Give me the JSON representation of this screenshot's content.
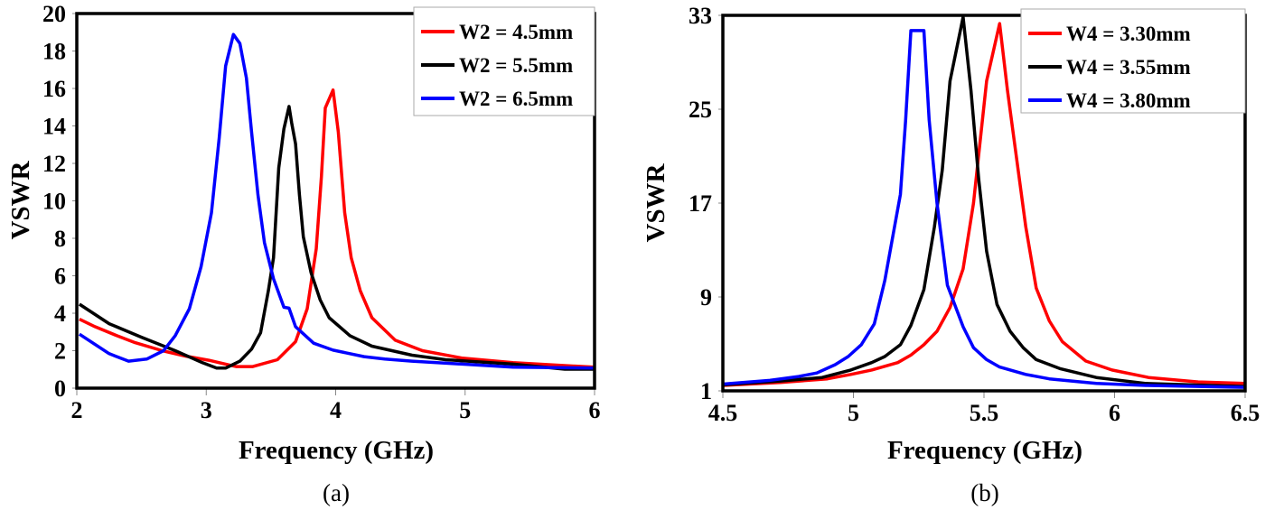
{
  "chart_data": [
    {
      "type": "line",
      "caption": "(a)",
      "xlabel": "Frequency (GHz)",
      "ylabel": "VSWR",
      "xlim": [
        2,
        6
      ],
      "ylim": [
        0,
        20
      ],
      "xticks": [
        "2",
        "3",
        "4",
        "5",
        "6"
      ],
      "yticks": [
        "0",
        "2",
        "4",
        "6",
        "8",
        "10",
        "12",
        "14",
        "16",
        "18",
        "20"
      ],
      "grid": false,
      "legend_position": "top-right",
      "series": [
        {
          "name": "W2 = 4.5mm",
          "color": "#ff0000",
          "x": [
            2.02,
            2.14,
            2.31,
            2.45,
            2.66,
            2.84,
            3.02,
            3.23,
            3.36,
            3.55,
            3.69,
            3.78,
            3.85,
            3.89,
            3.92,
            3.98,
            4.02,
            4.07,
            4.12,
            4.19,
            4.28,
            4.46,
            4.67,
            4.98,
            5.37,
            6.0
          ],
          "y": [
            3.68,
            3.28,
            2.8,
            2.43,
            2.0,
            1.71,
            1.49,
            1.15,
            1.15,
            1.52,
            2.48,
            4.24,
            7.44,
            11.28,
            14.96,
            15.92,
            13.68,
            9.36,
            6.96,
            5.2,
            3.76,
            2.56,
            2.0,
            1.6,
            1.36,
            1.12
          ]
        },
        {
          "name": "W2 = 5.5mm",
          "color": "#000000",
          "x": [
            2.02,
            2.25,
            2.5,
            2.76,
            2.97,
            3.08,
            3.15,
            3.26,
            3.35,
            3.42,
            3.48,
            3.52,
            3.56,
            3.6,
            3.64,
            3.66,
            3.69,
            3.72,
            3.75,
            3.81,
            3.88,
            3.95,
            4.11,
            4.28,
            4.59,
            4.85,
            5.37,
            5.77,
            6.0
          ],
          "y": [
            4.48,
            3.44,
            2.72,
            2.0,
            1.36,
            1.07,
            1.07,
            1.44,
            2.08,
            2.96,
            5.2,
            6.96,
            11.76,
            13.84,
            15.04,
            14.16,
            13.04,
            10.32,
            8.08,
            6.16,
            4.72,
            3.76,
            2.8,
            2.24,
            1.76,
            1.52,
            1.28,
            1.01,
            1.01
          ]
        },
        {
          "name": "W2 = 6.5mm",
          "color": "#0000ff",
          "x": [
            2.02,
            2.25,
            2.4,
            2.54,
            2.67,
            2.76,
            2.87,
            2.96,
            3.04,
            3.1,
            3.15,
            3.21,
            3.26,
            3.31,
            3.35,
            3.4,
            3.45,
            3.52,
            3.6,
            3.64,
            3.69,
            3.83,
            3.98,
            4.22,
            4.38,
            4.59,
            4.98,
            5.37,
            6.0
          ],
          "y": [
            2.88,
            1.84,
            1.44,
            1.55,
            2.0,
            2.8,
            4.24,
            6.48,
            9.36,
            13.36,
            17.2,
            18.88,
            18.4,
            16.56,
            13.68,
            10.32,
            7.76,
            5.84,
            4.32,
            4.27,
            3.28,
            2.4,
            2.03,
            1.68,
            1.55,
            1.44,
            1.28,
            1.12,
            1.07
          ]
        }
      ]
    },
    {
      "type": "line",
      "caption": "(b)",
      "xlabel": "Frequency (GHz)",
      "ylabel": "VSWR",
      "xlim": [
        4.5,
        6.5
      ],
      "ylim": [
        1,
        33
      ],
      "xticks": [
        "4.5",
        "5",
        "5.5",
        "6",
        "6.5"
      ],
      "yticks": [
        "1",
        "9",
        "17",
        "25",
        "33"
      ],
      "grid": false,
      "legend_position": "top-right",
      "series": [
        {
          "name": "W4 = 3.30mm",
          "color": "#ff0000",
          "x": [
            4.5,
            4.72,
            4.9,
            4.99,
            5.07,
            5.17,
            5.22,
            5.27,
            5.32,
            5.37,
            5.42,
            5.46,
            5.51,
            5.56,
            5.59,
            5.62,
            5.66,
            5.7,
            5.75,
            5.8,
            5.89,
            5.99,
            6.13,
            6.32,
            6.5
          ],
          "y": [
            1.46,
            1.71,
            2.02,
            2.4,
            2.78,
            3.41,
            4.05,
            4.93,
            6.08,
            8.1,
            11.4,
            17.0,
            27.4,
            32.3,
            26.6,
            21.6,
            15.0,
            9.76,
            6.96,
            5.19,
            3.54,
            2.78,
            2.14,
            1.76,
            1.63
          ]
        },
        {
          "name": "W4 = 3.55mm",
          "color": "#000000",
          "x": [
            4.5,
            4.72,
            4.88,
            4.99,
            5.07,
            5.12,
            5.18,
            5.22,
            5.27,
            5.31,
            5.34,
            5.37,
            5.42,
            5.45,
            5.48,
            5.51,
            5.55,
            5.6,
            5.65,
            5.7,
            5.79,
            5.93,
            6.12,
            6.5
          ],
          "y": [
            1.51,
            1.84,
            2.14,
            2.78,
            3.41,
            3.92,
            4.93,
            6.58,
            9.63,
            14.96,
            19.8,
            27.4,
            32.85,
            26.6,
            19.0,
            12.9,
            8.36,
            6.08,
            4.68,
            3.66,
            2.9,
            2.14,
            1.63,
            1.38
          ]
        },
        {
          "name": "W4 = 3.80mm",
          "color": "#0000ff",
          "x": [
            4.5,
            4.68,
            4.79,
            4.86,
            4.93,
            4.98,
            5.03,
            5.08,
            5.12,
            5.18,
            5.2,
            5.22,
            5.27,
            5.29,
            5.32,
            5.36,
            5.42,
            5.46,
            5.51,
            5.56,
            5.66,
            5.75,
            5.93,
            6.12,
            6.5
          ],
          "y": [
            1.58,
            1.89,
            2.22,
            2.52,
            3.23,
            3.92,
            4.93,
            6.71,
            10.39,
            17.75,
            24.1,
            31.7,
            31.7,
            24.1,
            17.0,
            10.0,
            6.46,
            4.68,
            3.66,
            3.03,
            2.4,
            2.02,
            1.63,
            1.46,
            1.3
          ]
        }
      ]
    }
  ]
}
